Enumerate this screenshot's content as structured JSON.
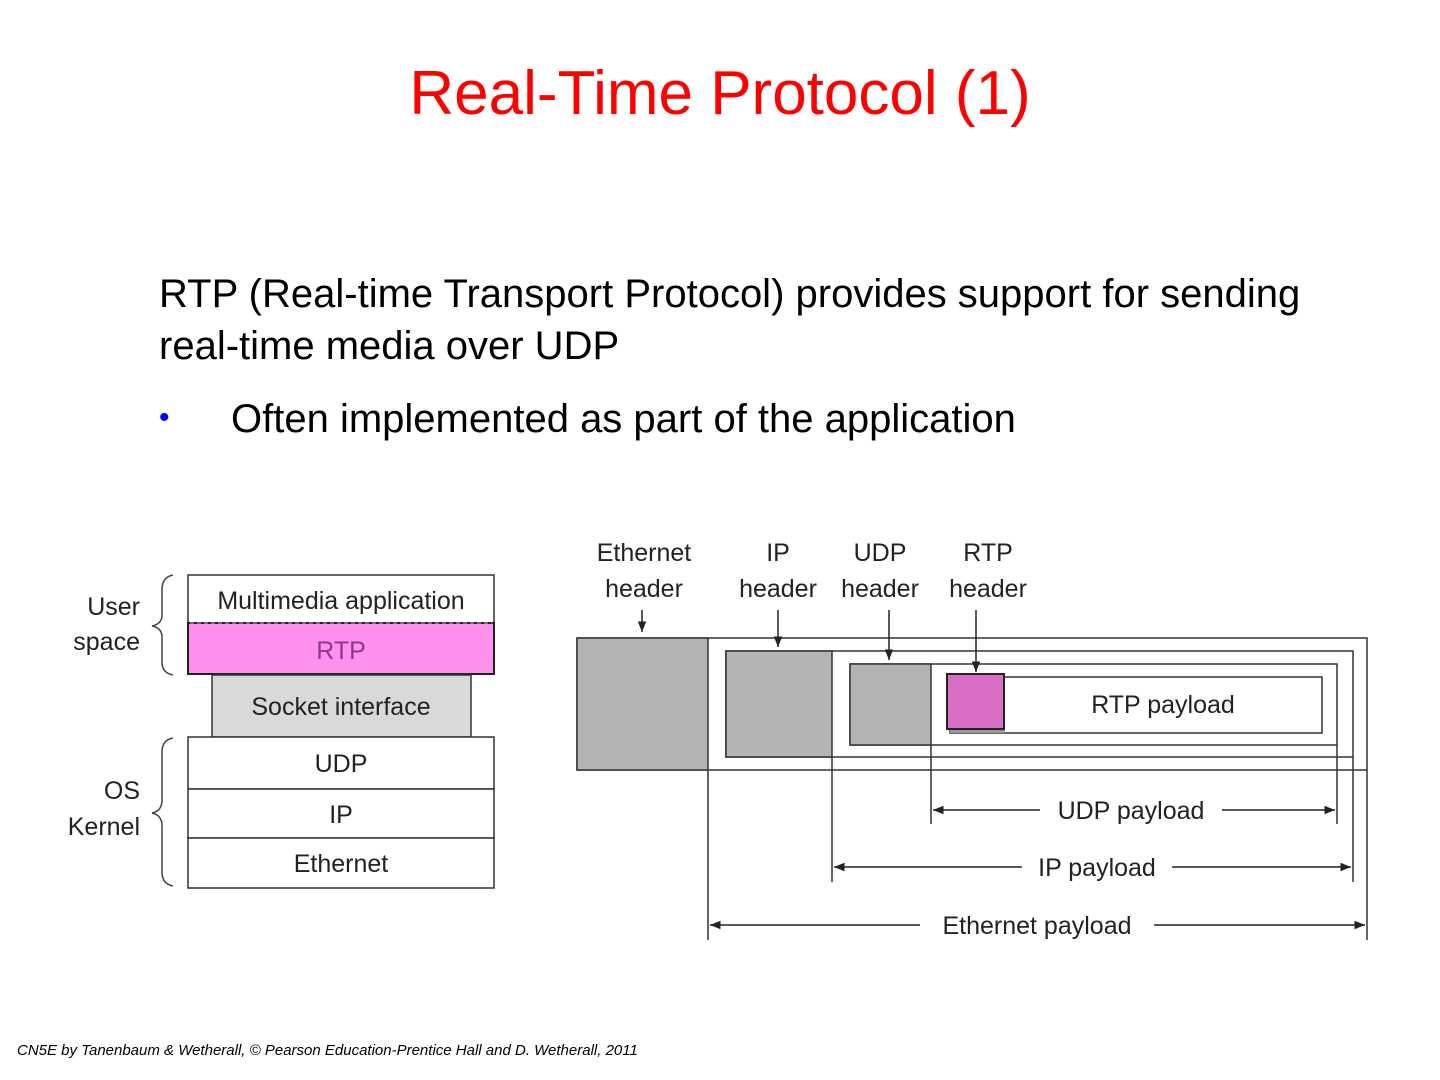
{
  "slide": {
    "title": "Real-Time Protocol (1)",
    "paragraph": "RTP (Real-time Transport Protocol) provides support for sending real-time media over UDP",
    "bullets": [
      "Often implemented as part of the application"
    ],
    "footer": "CN5E by Tanenbaum & Wetherall, © Pearson Education-Prentice Hall and D. Wetherall, 2011"
  },
  "colors": {
    "title": "#ff0000",
    "bullet": "#0000ff",
    "rtp_fill": "#ff90ec",
    "rtp_header_fill": "#d86ec6",
    "header_gray": "#b3b3b3",
    "socket_gray": "#d9d9d9"
  },
  "stack": {
    "groups": [
      {
        "line1": "User",
        "line2": "space"
      },
      {
        "line1": "OS",
        "line2": "Kernel"
      }
    ],
    "layers": [
      "Multimedia application",
      "RTP",
      "Socket interface",
      "UDP",
      "IP",
      "Ethernet"
    ]
  },
  "packet": {
    "headers": [
      {
        "line1": "Ethernet",
        "line2": "header"
      },
      {
        "line1": "IP",
        "line2": "header"
      },
      {
        "line1": "UDP",
        "line2": "header"
      },
      {
        "line1": "RTP",
        "line2": "header"
      }
    ],
    "rtp_payload": "RTP payload",
    "spans": [
      "UDP payload",
      "IP payload",
      "Ethernet payload"
    ]
  }
}
